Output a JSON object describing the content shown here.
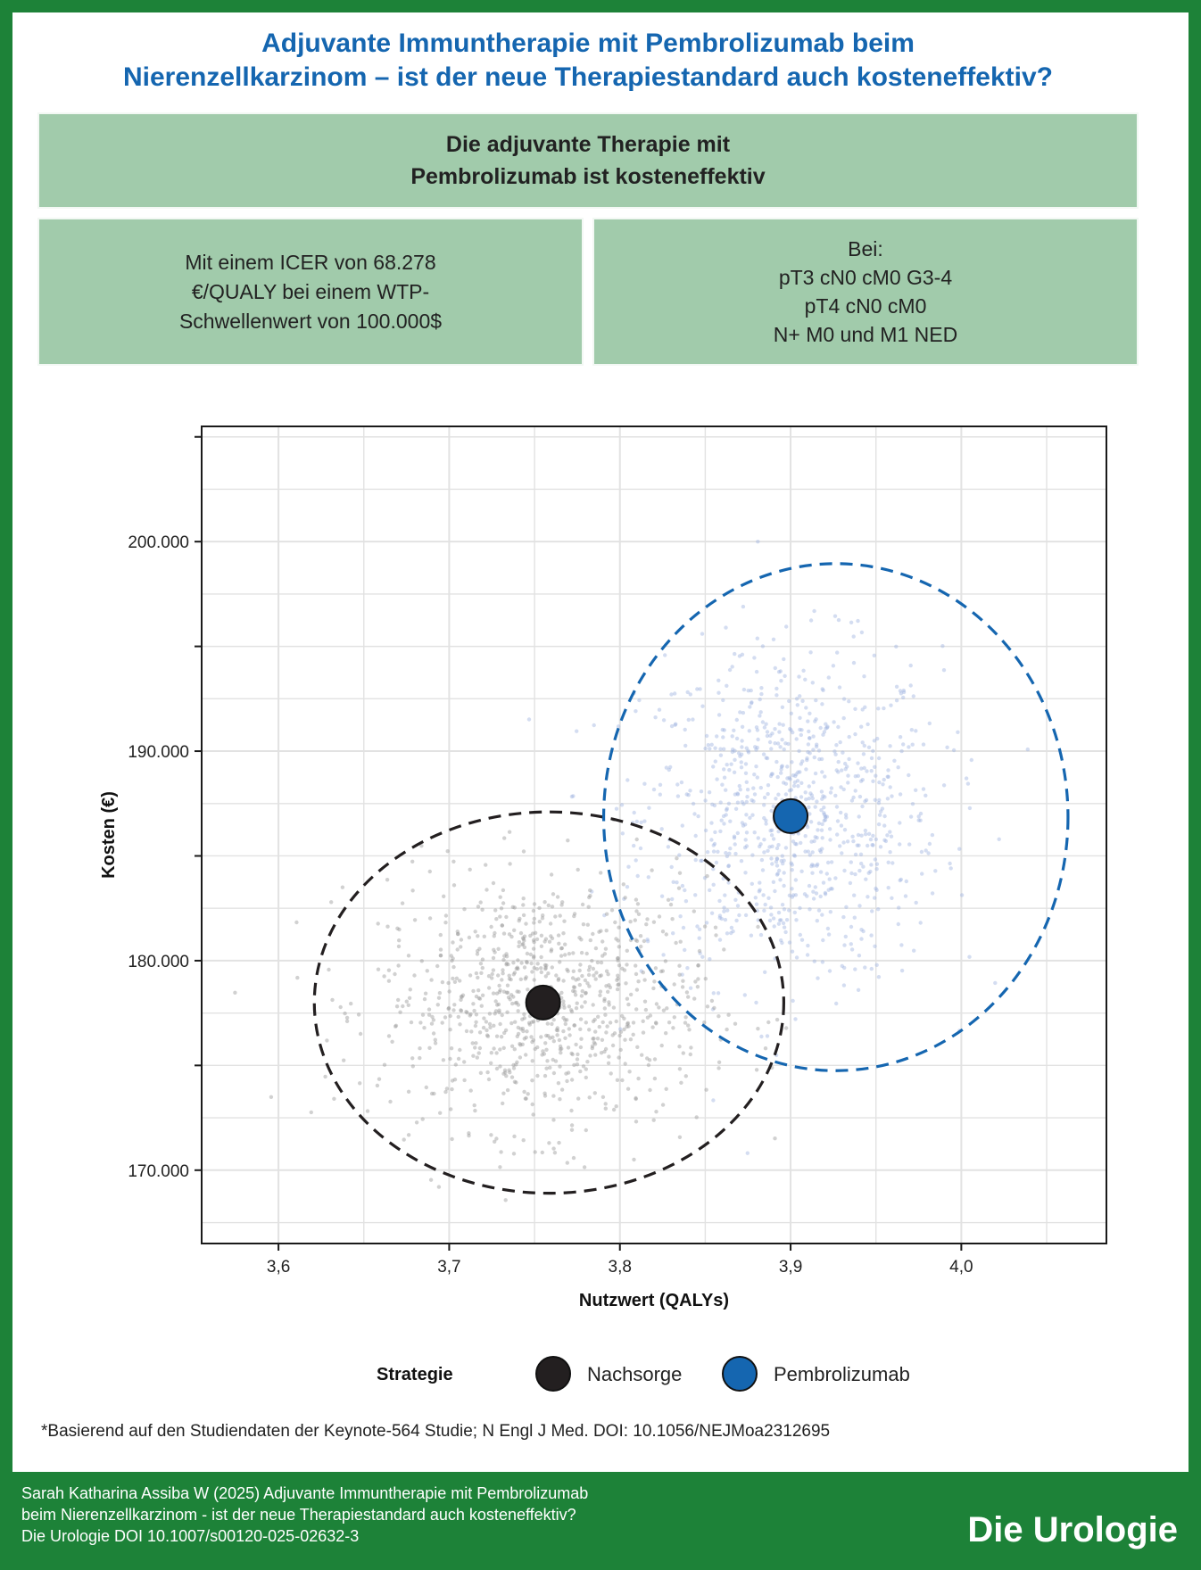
{
  "title": {
    "line1": "Adjuvante Immuntherapie mit Pembrolizumab beim",
    "line2": "Nierenzellkarzinom – ist  der neue Therapiestandard auch kosteneffektiv?"
  },
  "boxes": {
    "headline": {
      "line1": "Die adjuvante Therapie mit",
      "line2": "Pembrolizumab ist kosteneffektiv"
    },
    "left": {
      "line1": "Mit einem ICER von 68.278",
      "line2": "€/QUALY bei einem WTP-",
      "line3": "Schwellenwert von 100.000$"
    },
    "right": {
      "line1": "Bei:",
      "line2": "pT3 cN0 cM0 G3-4",
      "line3": "pT4 cN0 cM0",
      "line4": "N+ M0 und M1 NED"
    }
  },
  "colors": {
    "title": "#1566b0",
    "background_green": "#1d8238",
    "box_green": "#a1cbab",
    "nachsorge": "#231f20",
    "pembrolizumab": "#1566b0",
    "nachsorge_cloud": "#9a9a9a",
    "pembrolizumab_cloud": "#9fb3e0"
  },
  "chart_data": {
    "type": "scatter",
    "xlabel": "Nutzwert (QALYs)",
    "ylabel": "Kosten (€)",
    "xlim": [
      3.555,
      4.085
    ],
    "ylim": [
      166500,
      205500
    ],
    "xticks": [
      3.6,
      3.7,
      3.8,
      3.9,
      4.0
    ],
    "xtick_labels": [
      "3,6",
      "3,7",
      "3,8",
      "3,9",
      "4,0"
    ],
    "yticks": [
      170000,
      180000,
      190000,
      200000
    ],
    "ytick_labels": [
      "170.000",
      "180.000",
      "190.000",
      "200.000"
    ],
    "grid": true,
    "legend": {
      "title": "Strategie",
      "position": "bottom"
    },
    "series": [
      {
        "name": "Nachsorge",
        "mean": {
          "x": 3.755,
          "y": 178000
        },
        "ellipse": {
          "cx": 3.7585,
          "cy": 178000,
          "rx": 0.1375,
          "ry": 9100
        },
        "cloud_spread": {
          "sx": 0.048,
          "sy": 3000
        }
      },
      {
        "name": "Pembrolizumab",
        "mean": {
          "x": 3.9,
          "y": 186900
        },
        "ellipse": {
          "cx": 3.9265,
          "cy": 186850,
          "rx": 0.136,
          "ry": 12100
        },
        "cloud_spread": {
          "sx": 0.044,
          "sy": 4000
        }
      }
    ]
  },
  "footnote": "*Basierend auf den Studiendaten der Keynote-564 Studie; N Engl J Med. DOI: 10.1056/NEJMoa2312695",
  "citation": {
    "line1": "Sarah Katharina Assiba W (2025) Adjuvante Immuntherapie mit Pembrolizumab",
    "line2": "beim Nierenzellkarzinom - ist der neue Therapiestandard auch kosteneffektiv?",
    "line3": "Die Urologie DOI 10.1007/s00120-025-02632-3"
  },
  "journal": "Die Urologie"
}
